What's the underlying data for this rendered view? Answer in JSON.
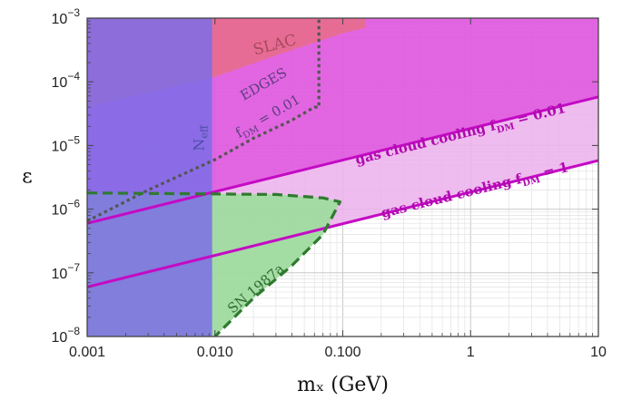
{
  "chart_data": {
    "type": "area",
    "title": "",
    "xlabel": "mₓ  (GeV)",
    "ylabel": "ε",
    "xscale": "log",
    "yscale": "log",
    "xlim": [
      0.001,
      10
    ],
    "ylim": [
      1e-08,
      0.001
    ],
    "grid": true,
    "x_ticks": [
      {
        "value": 0.001,
        "label": "0.001"
      },
      {
        "value": 0.01,
        "label": "0.010"
      },
      {
        "value": 0.1,
        "label": "0.100"
      },
      {
        "value": 1,
        "label": "1"
      },
      {
        "value": 10,
        "label": "10"
      }
    ],
    "y_ticks": [
      {
        "value": 1e-08,
        "base": "10",
        "exp": "−8"
      },
      {
        "value": 1e-07,
        "base": "10",
        "exp": "−7"
      },
      {
        "value": 1e-06,
        "base": "10",
        "exp": "−6"
      },
      {
        "value": 1e-05,
        "base": "10",
        "exp": "−5"
      },
      {
        "value": 0.0001,
        "base": "10",
        "exp": "−4"
      },
      {
        "value": 0.001,
        "base": "10",
        "exp": "−3"
      }
    ],
    "colors": {
      "neff_region": "#7b6de6",
      "slac_region": "#e86d87",
      "gas_cloud_region": "#df55df",
      "gas_cloud_light_region": "#ebb0eb",
      "sn_region": "#9fdb9f",
      "gas_cloud_lines": "#c40ac4",
      "edges_line": "#555555",
      "sn_line": "#2f7a2f"
    },
    "regions": [
      {
        "name": "gas cloud cooling fDM = 0.01 excluded",
        "color_key": "gas_cloud_region",
        "opacity": 0.9,
        "points": [
          [
            0.001,
            6e-07
          ],
          [
            10,
            5.8e-05
          ],
          [
            10,
            0.001
          ],
          [
            0.001,
            0.001
          ]
        ]
      },
      {
        "name": "gas cloud cooling fDM = 1 excluded",
        "color_key": "gas_cloud_light_region",
        "opacity": 0.85,
        "points": [
          [
            0.001,
            6e-08
          ],
          [
            10,
            5.8e-06
          ],
          [
            10,
            5.8e-05
          ],
          [
            0.001,
            6e-07
          ]
        ]
      },
      {
        "name": "SN 1987a excluded",
        "color_key": "sn_region",
        "opacity": 0.95,
        "points": [
          [
            0.001,
            1.8e-06
          ],
          [
            0.03,
            1.7e-06
          ],
          [
            0.07,
            1.5e-06
          ],
          [
            0.095,
            1.3e-06
          ],
          [
            0.07,
            4e-07
          ],
          [
            0.04,
            1.3e-07
          ],
          [
            0.02,
            4e-08
          ],
          [
            0.01,
            1e-08
          ],
          [
            0.001,
            1e-08
          ]
        ]
      },
      {
        "name": "SLAC excluded",
        "color_key": "slac_region",
        "opacity": 0.85,
        "points": [
          [
            0.001,
            4e-05
          ],
          [
            0.01,
            0.00012
          ],
          [
            0.03,
            0.00026
          ],
          [
            0.1,
            0.00058
          ],
          [
            0.15,
            0.0007
          ],
          [
            0.15,
            0.001
          ],
          [
            0.001,
            0.001
          ]
        ]
      },
      {
        "name": "Neff excluded",
        "color_key": "neff_region",
        "opacity": 0.85,
        "points": [
          [
            0.001,
            1e-08
          ],
          [
            0.0095,
            1e-08
          ],
          [
            0.0095,
            0.001
          ],
          [
            0.001,
            0.001
          ]
        ]
      }
    ],
    "series": [
      {
        "name": "gas cloud cooling fDM = 0.01",
        "style": "solid",
        "color_key": "gas_cloud_lines",
        "x": [
          0.001,
          10
        ],
        "y": [
          6e-07,
          5.8e-05
        ]
      },
      {
        "name": "gas cloud cooling fDM = 1",
        "style": "solid",
        "color_key": "gas_cloud_lines",
        "x": [
          0.001,
          10
        ],
        "y": [
          6e-08,
          5.8e-06
        ]
      },
      {
        "name": "EDGES fDM = 0.01",
        "style": "dotted",
        "color_key": "edges_line",
        "x": [
          0.001,
          0.003,
          0.01,
          0.02,
          0.04,
          0.06,
          0.065,
          0.065
        ],
        "y": [
          6.5e-07,
          2e-06,
          6e-06,
          1.3e-05,
          2.5e-05,
          4e-05,
          4e-05,
          0.001
        ]
      },
      {
        "name": "SN 1987a",
        "style": "dashed",
        "color_key": "sn_line",
        "x": [
          0.001,
          0.03,
          0.07,
          0.095,
          0.07,
          0.04,
          0.02,
          0.01
        ],
        "y": [
          1.8e-06,
          1.7e-06,
          1.5e-06,
          1.3e-06,
          4e-07,
          1.3e-07,
          4e-08,
          1e-08
        ]
      }
    ],
    "annotations": [
      {
        "id": "slac",
        "text": "SLAC",
        "x": 0.03,
        "y": 0.00032,
        "rotate": -14,
        "size": 17,
        "color": "#a64a5d"
      },
      {
        "id": "edges",
        "text": "EDGES",
        "x": 0.025,
        "y": 8e-05,
        "rotate": -30,
        "size": 15,
        "color": "#5e3d7e"
      },
      {
        "id": "edges_fdm",
        "text": "f",
        "sub": "DM",
        "tail": " = 0.01",
        "x": 0.027,
        "y": 2.5e-05,
        "rotate": -30,
        "size": 15,
        "color": "#5e3d7e"
      },
      {
        "id": "neff",
        "text": "N",
        "sub": "eff",
        "tail": "",
        "x": 0.0082,
        "y": 1.3e-05,
        "rotate": -90,
        "size": 16,
        "color": "#4f4da8"
      },
      {
        "id": "gas_001",
        "text": "gas cloud cooling  f",
        "sub": "DM",
        "tail": " = 0.01",
        "x": 0.85,
        "y": 1.3e-05,
        "rotate": -14,
        "size": 15,
        "bold": true,
        "color": "#b00ab0"
      },
      {
        "id": "gas_1",
        "text": "gas cloud cooling  f",
        "sub": "DM",
        "tail": " = 1",
        "x": 1.1,
        "y": 1.7e-06,
        "rotate": -14,
        "size": 15,
        "bold": true,
        "color": "#b00ab0"
      },
      {
        "id": "sn",
        "text": "SN 1987a",
        "x": 0.022,
        "y": 5e-08,
        "rotate": -40,
        "size": 15,
        "color": "#2f6a2f"
      }
    ]
  }
}
